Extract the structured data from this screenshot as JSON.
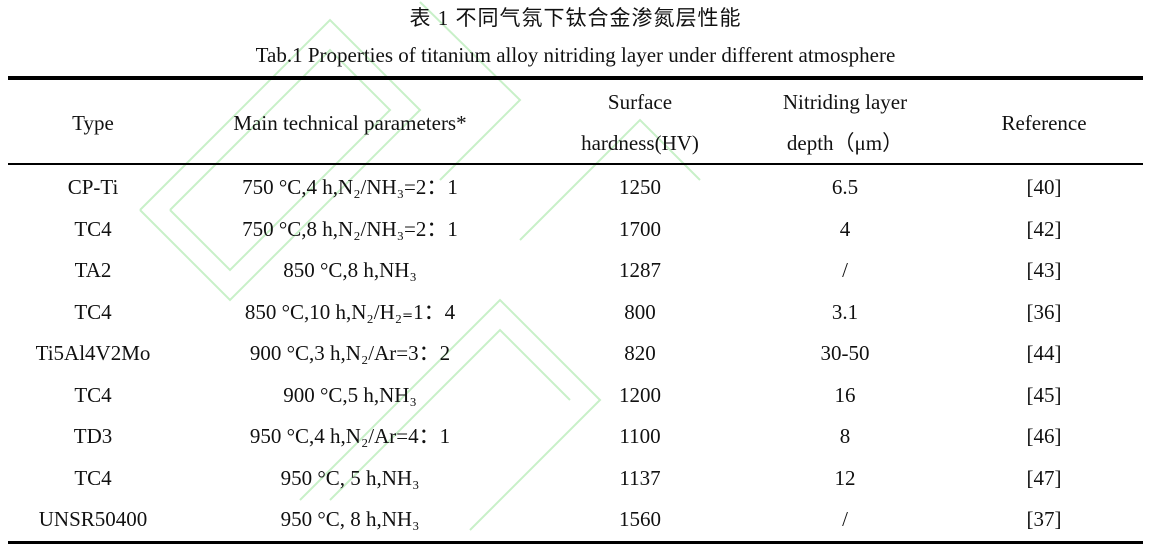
{
  "caption": {
    "title_cn": "表 1  不同气氛下钛合金渗氮层性能",
    "title_en": "Tab.1 Properties of titanium alloy nitriding layer under different atmosphere"
  },
  "table": {
    "headers": {
      "type": "Type",
      "params": "Main technical parameters*",
      "hardness_l1": "Surface",
      "hardness_l2": "hardness(HV)",
      "depth_l1": "Nitriding layer",
      "depth_l2": "depth（μm）",
      "reference": "Reference"
    },
    "rows": [
      {
        "type": "CP-Ti",
        "params": "750 °C,4 h,N₂/NH₃=2：1",
        "hardness": "1250",
        "depth": "6.5",
        "ref": "[40]"
      },
      {
        "type": "TC4",
        "params": "750 °C,8 h,N₂/NH₃=2：1",
        "hardness": "1700",
        "depth": "4",
        "ref": "[42]"
      },
      {
        "type": "TA2",
        "params": "850 °C,8 h,NH₃",
        "hardness": "1287",
        "depth": "/",
        "ref": "[43]"
      },
      {
        "type": "TC4",
        "params": "850 °C,10 h,N₂/H₂₌1：4",
        "hardness": "800",
        "depth": "3.1",
        "ref": "[36]"
      },
      {
        "type": "Ti5Al4V2Mo",
        "params": "900 °C,3 h,N₂/Ar=3：2",
        "hardness": "820",
        "depth": "30-50",
        "ref": "[44]"
      },
      {
        "type": "TC4",
        "params": "900 °C,5 h,NH₃",
        "hardness": "1200",
        "depth": "16",
        "ref": "[45]"
      },
      {
        "type": "TD3",
        "params": "950 °C,4 h,N₂/Ar=4：1",
        "hardness": "1100",
        "depth": "8",
        "ref": "[46]"
      },
      {
        "type": "TC4",
        "params": "950 °C, 5 h,NH₃",
        "hardness": "1137",
        "depth": "12",
        "ref": "[47]"
      },
      {
        "type": "UNSR50400",
        "params": "950 °C, 8 h,NH₃",
        "hardness": "1560",
        "depth": "/",
        "ref": "[37]"
      }
    ]
  },
  "colors": {
    "watermark": "#c8f0c8",
    "text": "#111111",
    "rules": "#000000"
  }
}
